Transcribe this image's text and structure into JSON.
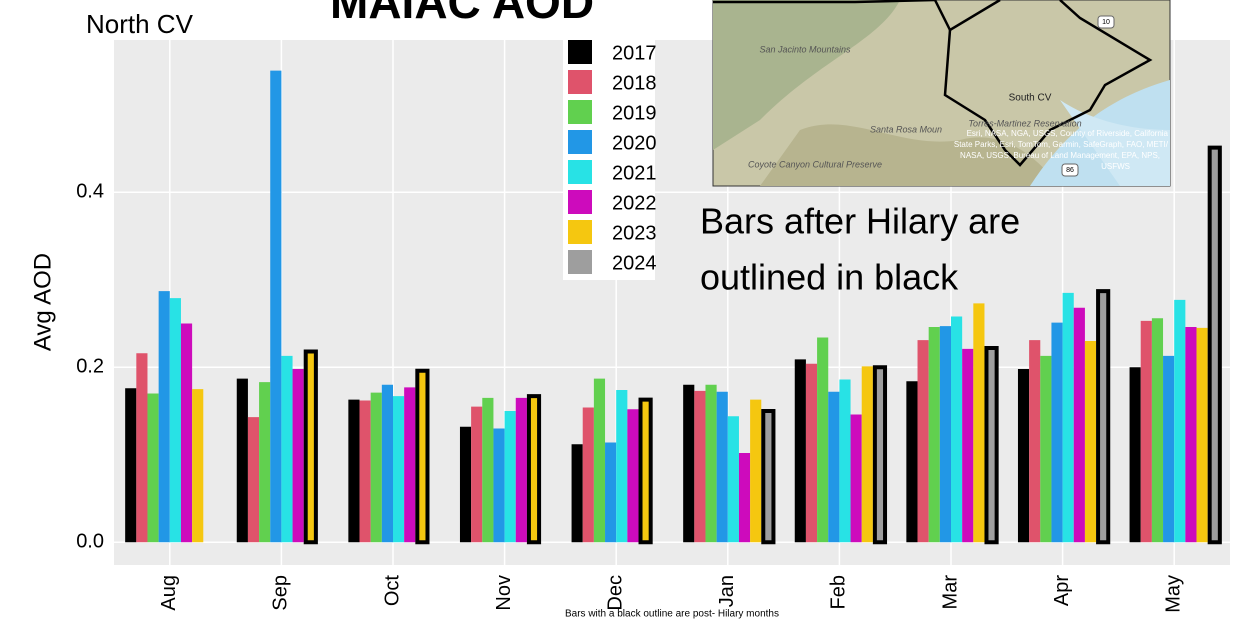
{
  "chart_data": {
    "type": "bar",
    "title": "MAIAC AOD",
    "subtitle": "North CV",
    "ylabel": "Avg AOD",
    "caption": "Bars with a black outline are post- Hilary months",
    "annotation": [
      "Bars after Hilary are",
      "outlined in black"
    ],
    "categories": [
      "Aug",
      "Sep",
      "Oct",
      "Nov",
      "Dec",
      "Jan",
      "Feb",
      "Mar",
      "Apr",
      "May"
    ],
    "series": [
      {
        "name": "2017",
        "color": "#000000",
        "values": [
          0.176,
          0.187,
          0.163,
          0.132,
          0.112,
          0.18,
          0.209,
          0.184,
          0.198,
          0.2
        ]
      },
      {
        "name": "2018",
        "color": "#DF536B",
        "values": [
          0.216,
          0.143,
          0.162,
          0.155,
          0.154,
          0.173,
          0.204,
          0.231,
          0.231,
          0.253
        ]
      },
      {
        "name": "2019",
        "color": "#61D04F",
        "values": [
          0.17,
          0.183,
          0.171,
          0.165,
          0.187,
          0.18,
          0.234,
          0.246,
          0.213,
          0.256
        ]
      },
      {
        "name": "2020",
        "color": "#2297E6",
        "values": [
          0.287,
          0.539,
          0.18,
          0.13,
          0.114,
          0.172,
          0.172,
          0.247,
          0.251,
          0.213
        ]
      },
      {
        "name": "2021",
        "color": "#28E2E5",
        "values": [
          0.279,
          0.213,
          0.167,
          0.15,
          0.174,
          0.144,
          0.186,
          0.258,
          0.285,
          0.277
        ]
      },
      {
        "name": "2022",
        "color": "#CD0BBC",
        "values": [
          0.25,
          0.198,
          0.177,
          0.165,
          0.152,
          0.102,
          0.146,
          0.221,
          0.268,
          0.246
        ]
      },
      {
        "name": "2023",
        "color": "#F5C710",
        "values": [
          0.175,
          0.218,
          0.196,
          0.167,
          0.163,
          0.163,
          0.201,
          0.273,
          0.23,
          0.245
        ]
      },
      {
        "name": "2024",
        "color": "#9E9E9E",
        "values": [
          null,
          null,
          null,
          null,
          null,
          0.15,
          0.2,
          0.222,
          0.287,
          0.451
        ]
      }
    ],
    "ylim": [
      -0.026,
      0.574
    ],
    "yticks": [
      {
        "value": 0,
        "label": "0.0"
      },
      {
        "value": 0.2,
        "label": "0.2"
      },
      {
        "value": 0.4,
        "label": "0.4"
      }
    ],
    "grid": true
  },
  "map": {
    "labels": [
      "San Jacinto Mountains",
      "South CV",
      "Torres-Martinez Reservation",
      "Santa Rosa Moun",
      "Coyote Canyon Cultural Preserve",
      "10",
      "86"
    ],
    "attribution": [
      "Esri, NASA, NGA, USGS, County of Riverside, California",
      "State Parks, Esri, TomTom, Garmin, SafeGraph, FAO, METI/",
      "NASA, USGS, Bureau of Land Management, EPA, NPS,",
      "USFWS"
    ]
  }
}
